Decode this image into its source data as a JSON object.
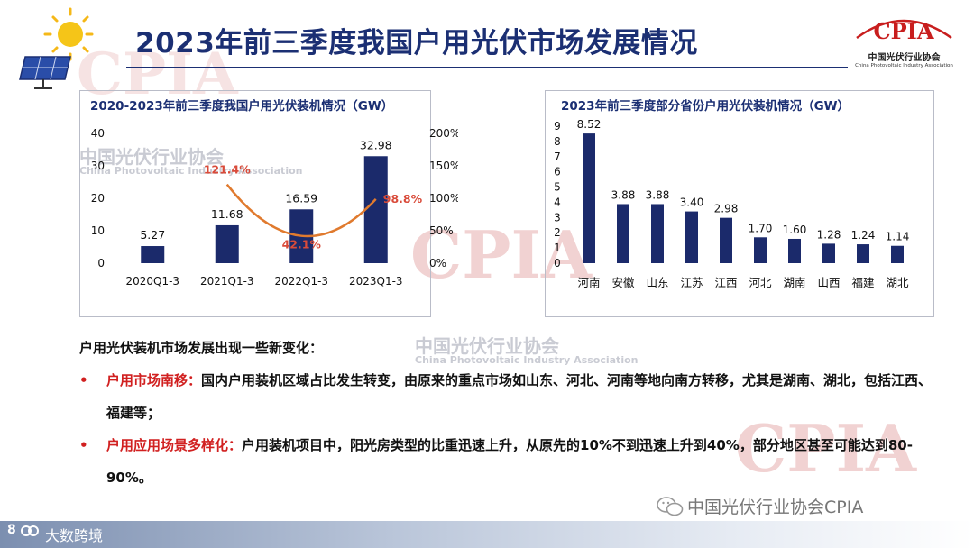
{
  "page_title": "2023年前三季度我国户用光伏市场发展情况",
  "logo": {
    "text": "CPIA",
    "subtitle": "中国光伏行业协会",
    "subtitle_en": "China Photovoltaic Industry Association"
  },
  "watermark": {
    "cn": "中国光伏行业协会",
    "en": "China Photovoltaic Industry Association",
    "big": "CPIA"
  },
  "chart_data": [
    {
      "type": "bar",
      "title": "2020-2023年前三季度我国户用光伏装机情况（GW）",
      "categories": [
        "2020Q1-3",
        "2021Q1-3",
        "2022Q1-3",
        "2023Q1-3"
      ],
      "series": [
        {
          "values": [
            5.27,
            11.68,
            16.59,
            32.98
          ],
          "data_labels": [
            "5.27",
            "11.68",
            "16.59",
            "32.98"
          ]
        },
        {
          "type": "line",
          "axis": "right",
          "values": [
            null,
            121.4,
            42.1,
            98.8
          ],
          "data_labels": [
            "",
            "121.4%",
            "42.1%",
            "98.8%"
          ]
        }
      ],
      "y_ticks": [
        "0",
        "10",
        "20",
        "30",
        "40"
      ],
      "y2_ticks": [
        "0%",
        "50%",
        "100%",
        "150%",
        "200%"
      ],
      "ylim": [
        0,
        40
      ],
      "y2lim": [
        0,
        200
      ],
      "grid": false,
      "colors": {
        "bar": "#1b2a6b",
        "line": "#e07a2e",
        "line_label": "#d94b3a"
      }
    },
    {
      "type": "bar",
      "title": "2023年前三季度部分省份户用光伏装机情况（GW）",
      "categories": [
        "河南",
        "安徽",
        "山东",
        "江苏",
        "江西",
        "河北",
        "湖南",
        "山西",
        "福建",
        "湖北"
      ],
      "values": [
        8.52,
        3.88,
        3.88,
        3.4,
        2.98,
        1.7,
        1.6,
        1.28,
        1.24,
        1.14
      ],
      "data_labels": [
        "8.52",
        "3.88",
        "3.88",
        "3.40",
        "2.98",
        "1.70",
        "1.60",
        "1.28",
        "1.24",
        "1.14"
      ],
      "y_ticks": [
        "0",
        "1",
        "2",
        "3",
        "4",
        "5",
        "6",
        "7",
        "8",
        "9"
      ],
      "ylim": [
        0,
        9
      ],
      "grid": false,
      "colors": {
        "bar": "#1b2a6b"
      }
    }
  ],
  "text": {
    "intro": "户用光伏装机市场发展出现一些新变化：",
    "bullets": [
      {
        "marker": "•",
        "head": "户用市场南移：",
        "body": "国内户用装机区域占比发生转变，由原来的重点市场如山东、河北、河南等地向南方转移，尤其是湖南、湖北，包括江西、福建等；"
      },
      {
        "marker": "•",
        "head": "户用应用场景多样化：",
        "body": "户用装机项目中，阳光房类型的比重迅速上升，从原先的10%不到迅速上升到40%，部分地区甚至可能达到80-90%。"
      }
    ]
  },
  "footer": {
    "page_number": "8",
    "brand": "大数跨境",
    "wechat": "中国光伏行业协会CPIA"
  },
  "icons": [
    "sun-icon",
    "solar-panel-icon",
    "wechat-icon",
    "brand-logo-icon"
  ]
}
